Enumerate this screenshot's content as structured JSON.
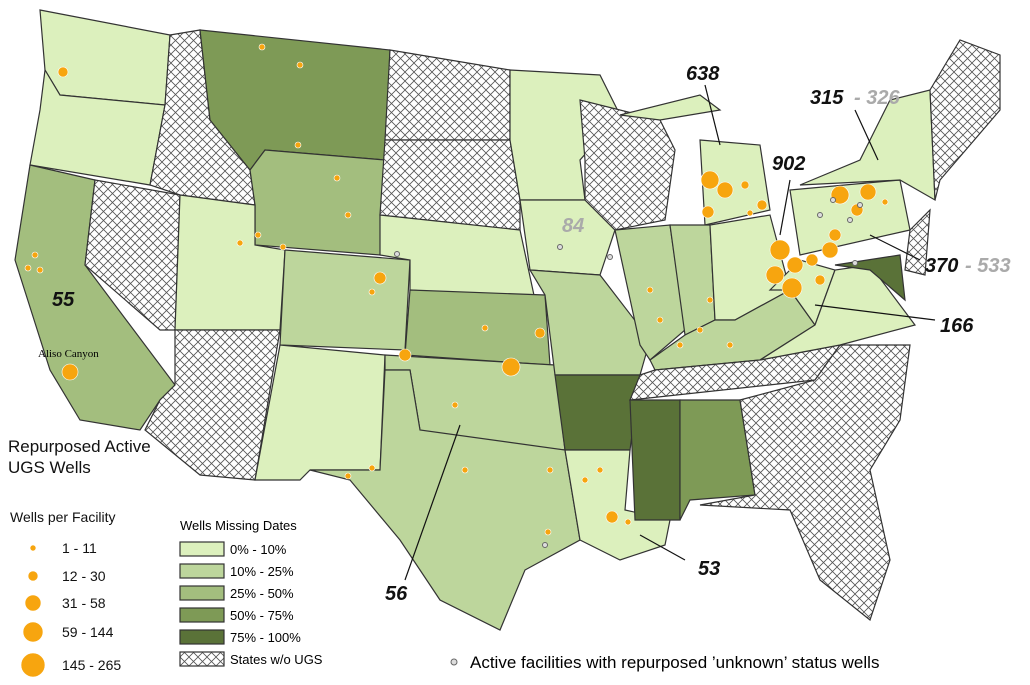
{
  "title": "Repurposed Active UGS Wells",
  "wells_legend": {
    "title": "Wells per Facility",
    "items": [
      "1 - 11",
      "12 - 30",
      "31 - 58",
      "59 - 144",
      "145 - 265"
    ]
  },
  "missing_legend": {
    "title": "Wells Missing Dates",
    "items": [
      "0% - 10%",
      "10% - 25%",
      "25% - 50%",
      "50% - 75%",
      "75% - 100%",
      "States w/o UGS"
    ]
  },
  "annotations": {
    "michigan": "638",
    "ohio": "902",
    "new_york": "315",
    "new_york_unknown": "- 326",
    "iowa": "84",
    "pennsylvania": "370",
    "pennsylvania_unknown": "- 533",
    "west_virginia": "166",
    "california": "55",
    "aliso": "Aliso Canyon",
    "oklahoma_texas": "56",
    "louisiana": "53"
  },
  "footnote": "Active facilities with repurposed ’unknown’ status wells"
}
